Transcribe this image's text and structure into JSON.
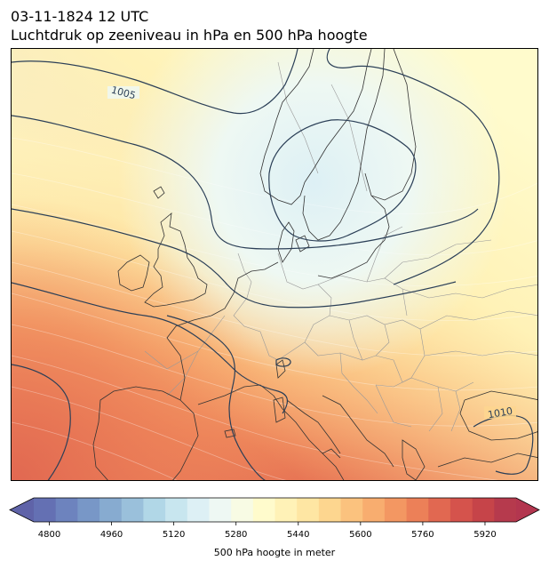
{
  "header": {
    "datetime": "03-11-1824 12 UTC",
    "title": "Luchtdruk op zeeniveau in hPa en 500 hPa hoogte"
  },
  "map": {
    "isobar_labels": [
      "1005",
      "1010"
    ],
    "isobar_color": "#2b3f57",
    "coastline_color": "#333333",
    "border_color": "#999999"
  },
  "colorbar": {
    "label": "500 hPa hoogte in meter",
    "ticks": [
      "4800",
      "4960",
      "5120",
      "5280",
      "5440",
      "5600",
      "5760",
      "5920"
    ],
    "min": 4760,
    "max": 6000,
    "colors": [
      "#6470b3",
      "#6d83be",
      "#7897c7",
      "#87abd0",
      "#9ac0db",
      "#b1d7e7",
      "#c8e6ef",
      "#ddf0f5",
      "#eef8f3",
      "#f8fbe4",
      "#fffbcc",
      "#fff2b7",
      "#fee6a3",
      "#fdd68f",
      "#fbc27e",
      "#f8ad6f",
      "#f39762",
      "#ec8058",
      "#e16851",
      "#d5534c",
      "#c64449",
      "#b63a4d"
    ]
  }
}
